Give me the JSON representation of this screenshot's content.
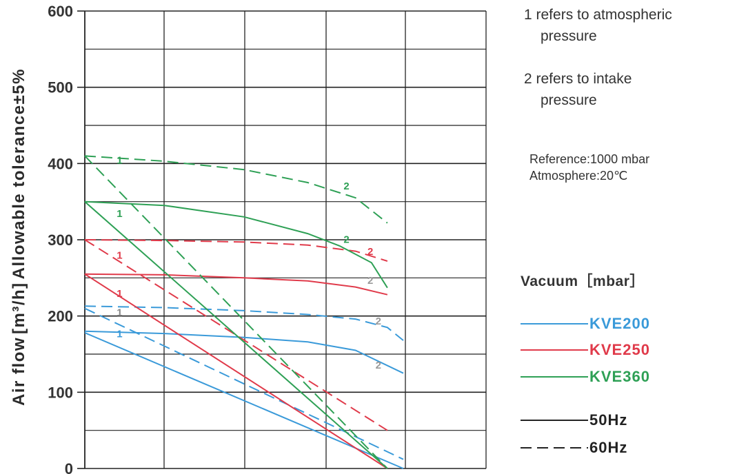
{
  "chart_data": {
    "type": "line",
    "ylabel_parts": [
      "Air flow",
      "[m³/h]",
      "Allowable tolerance±5%"
    ],
    "ylim": [
      0,
      600
    ],
    "yticks": [
      "0",
      "100",
      "200",
      "300",
      "400",
      "500",
      "600"
    ],
    "xlim": [
      0,
      40
    ],
    "grid": true,
    "series": [
      {
        "name": "KVE200",
        "color": "#3a9ad9",
        "freq": "50Hz",
        "curve": "2",
        "points": [
          [
            0,
            180
          ],
          [
            10,
            177
          ],
          [
            20,
            172
          ],
          [
            28,
            166
          ],
          [
            34,
            155
          ],
          [
            40,
            125
          ]
        ]
      },
      {
        "name": "KVE200",
        "color": "#3a9ad9",
        "freq": "60Hz",
        "curve": "2",
        "points": [
          [
            0,
            213
          ],
          [
            10,
            211
          ],
          [
            20,
            207
          ],
          [
            28,
            202
          ],
          [
            34,
            196
          ],
          [
            38,
            185
          ],
          [
            40,
            168
          ]
        ]
      },
      {
        "name": "KVE200",
        "color": "#3a9ad9",
        "freq": "50Hz",
        "curve": "1",
        "points": [
          [
            0,
            178
          ],
          [
            40,
            0
          ]
        ]
      },
      {
        "name": "KVE200",
        "color": "#3a9ad9",
        "freq": "60Hz",
        "curve": "1",
        "points": [
          [
            0,
            210
          ],
          [
            40,
            12
          ]
        ]
      },
      {
        "name": "KVE250",
        "color": "#e03a4a",
        "freq": "50Hz",
        "curve": "2",
        "points": [
          [
            0,
            255
          ],
          [
            10,
            254
          ],
          [
            20,
            250
          ],
          [
            28,
            246
          ],
          [
            34,
            238
          ],
          [
            38,
            228
          ]
        ]
      },
      {
        "name": "KVE250",
        "color": "#e03a4a",
        "freq": "60Hz",
        "curve": "2",
        "points": [
          [
            0,
            300
          ],
          [
            10,
            299
          ],
          [
            20,
            297
          ],
          [
            28,
            293
          ],
          [
            34,
            285
          ],
          [
            38,
            272
          ]
        ]
      },
      {
        "name": "KVE250",
        "color": "#e03a4a",
        "freq": "50Hz",
        "curve": "1",
        "points": [
          [
            0,
            255
          ],
          [
            38,
            0
          ]
        ]
      },
      {
        "name": "KVE250",
        "color": "#e03a4a",
        "freq": "60Hz",
        "curve": "1",
        "points": [
          [
            0,
            300
          ],
          [
            38,
            50
          ]
        ]
      },
      {
        "name": "KVE360",
        "color": "#2ea055",
        "freq": "50Hz",
        "curve": "2",
        "points": [
          [
            0,
            350
          ],
          [
            10,
            345
          ],
          [
            20,
            330
          ],
          [
            28,
            308
          ],
          [
            32,
            292
          ],
          [
            36,
            270
          ],
          [
            38,
            237
          ]
        ]
      },
      {
        "name": "KVE360",
        "color": "#2ea055",
        "freq": "60Hz",
        "curve": "2",
        "points": [
          [
            0,
            410
          ],
          [
            10,
            403
          ],
          [
            20,
            392
          ],
          [
            28,
            375
          ],
          [
            34,
            355
          ],
          [
            38,
            322
          ]
        ]
      },
      {
        "name": "KVE360",
        "color": "#2ea055",
        "freq": "50Hz",
        "curve": "1",
        "points": [
          [
            0,
            350
          ],
          [
            38,
            0
          ]
        ]
      },
      {
        "name": "KVE360",
        "color": "#2ea055",
        "freq": "60Hz",
        "curve": "1",
        "points": [
          [
            0,
            410
          ],
          [
            38,
            0
          ]
        ]
      }
    ],
    "annotations": [
      {
        "text": "1",
        "x": 4,
        "y": 400,
        "color": "#2ea055"
      },
      {
        "text": "1",
        "x": 4,
        "y": 330,
        "color": "#2ea055"
      },
      {
        "text": "1",
        "x": 4,
        "y": 275,
        "color": "#e03a4a"
      },
      {
        "text": "1",
        "x": 4,
        "y": 225,
        "color": "#e03a4a"
      },
      {
        "text": "1",
        "x": 4,
        "y": 200,
        "color": "#888888"
      },
      {
        "text": "1",
        "x": 4,
        "y": 172,
        "color": "#3a9ad9"
      },
      {
        "text": "2",
        "x": 32.5,
        "y": 366,
        "color": "#2ea055"
      },
      {
        "text": "2",
        "x": 32.5,
        "y": 296,
        "color": "#2ea055"
      },
      {
        "text": "2",
        "x": 35.5,
        "y": 280,
        "color": "#e03a4a"
      },
      {
        "text": "2",
        "x": 35.5,
        "y": 242,
        "color": "#999999"
      },
      {
        "text": "2",
        "x": 36.5,
        "y": 189,
        "color": "#999999"
      },
      {
        "text": "2",
        "x": 36.5,
        "y": 131,
        "color": "#999999"
      }
    ]
  },
  "notes": [
    {
      "line1": "1 refers to atmospheric",
      "line2": "pressure"
    },
    {
      "line1": "2 refers to intake",
      "line2": "pressure"
    }
  ],
  "reference": {
    "line1": "Reference:1000 mbar",
    "line2": "Atmosphere:20℃"
  },
  "legend": {
    "title": "Vacuum［mbar］",
    "models": [
      {
        "name": "KVE200",
        "color": "#3a9ad9"
      },
      {
        "name": "KVE250",
        "color": "#e03a4a"
      },
      {
        "name": "KVE360",
        "color": "#2ea055"
      }
    ],
    "freqs": [
      {
        "name": "50Hz",
        "style": "solid"
      },
      {
        "name": "60Hz",
        "style": "dashed"
      }
    ]
  }
}
